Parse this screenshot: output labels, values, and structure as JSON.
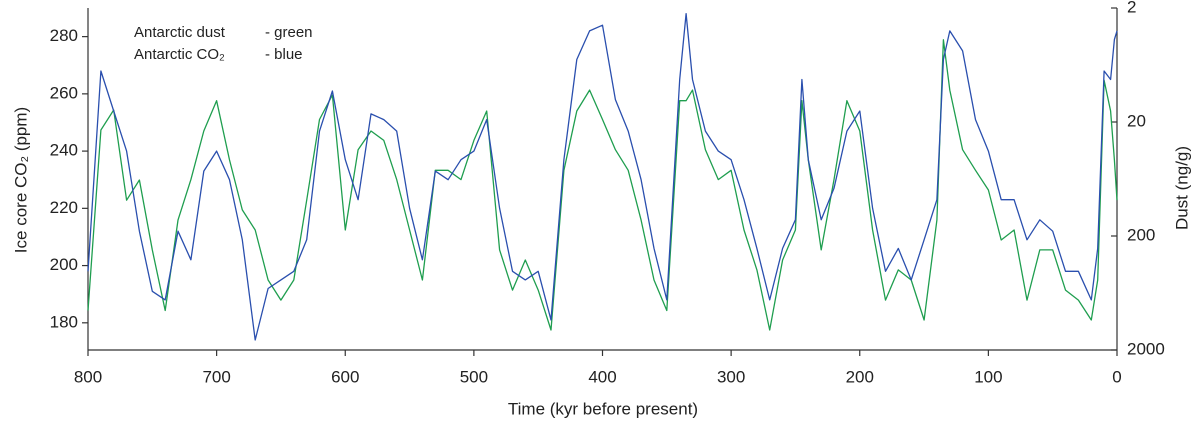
{
  "chart_data": {
    "type": "line",
    "x_label": "Time (kyr before present)",
    "y_label": "Ice core CO₂ (ppm)",
    "y2_label": "Dust (ng/g)",
    "xlim": [
      800,
      0
    ],
    "xticks": [
      800,
      700,
      600,
      500,
      400,
      300,
      200,
      100,
      0
    ],
    "ylim": [
      170.5,
      290
    ],
    "yticks": [
      180,
      200,
      220,
      240,
      260,
      280
    ],
    "y2lim": [
      2000,
      2
    ],
    "y2ticks": [
      2,
      20,
      200,
      2000
    ],
    "y2log": true,
    "x": [
      800,
      790,
      780,
      770,
      760,
      750,
      740,
      730,
      720,
      710,
      700,
      690,
      680,
      670,
      660,
      650,
      640,
      630,
      620,
      610,
      600,
      590,
      580,
      570,
      560,
      550,
      540,
      530,
      520,
      510,
      500,
      490,
      480,
      470,
      460,
      450,
      440,
      430,
      420,
      410,
      400,
      390,
      380,
      370,
      360,
      350,
      340,
      335,
      330,
      320,
      310,
      300,
      290,
      280,
      270,
      260,
      250,
      245,
      240,
      230,
      220,
      210,
      200,
      190,
      180,
      170,
      160,
      150,
      140,
      135,
      130,
      120,
      110,
      100,
      90,
      80,
      70,
      60,
      50,
      40,
      30,
      20,
      15,
      10,
      5,
      2,
      0
    ],
    "series": [
      {
        "name": "Antarctic dust",
        "legend_suffix": "- green",
        "color": "#1f9e4f",
        "axis": "y2",
        "values": [
          900,
          23.5,
          15.7,
          97,
          64.5,
          265,
          900,
          145,
          64,
          24,
          13,
          43,
          118,
          177,
          486,
          730,
          486,
          97,
          19,
          11.6,
          177,
          35,
          24,
          29,
          64,
          177,
          486,
          53,
          53,
          64,
          29,
          16,
          265,
          596,
          325,
          596,
          1336,
          53,
          16,
          10.5,
          19,
          35,
          53,
          145,
          486,
          900,
          13,
          13,
          10.5,
          35,
          64,
          53,
          177,
          397,
          1336,
          325,
          177,
          13,
          43,
          265,
          64,
          13,
          24,
          177,
          730,
          397,
          486,
          1091,
          145,
          3.8,
          10.5,
          35,
          53,
          79,
          217,
          177,
          730,
          265,
          265,
          596,
          730,
          1091,
          486,
          8.6,
          16,
          43,
          97
        ]
      },
      {
        "name": "Antarctic CO₂",
        "legend_suffix": "- blue",
        "color": "#2a4fae",
        "axis": "y",
        "values": [
          198,
          268,
          254,
          240,
          212,
          191,
          188,
          212,
          202,
          233,
          240,
          230,
          209,
          174,
          192,
          195,
          198,
          209,
          247,
          261,
          237,
          223,
          253,
          251,
          247,
          220,
          202,
          233,
          230,
          237,
          240,
          251,
          220,
          198,
          195,
          198,
          181,
          237,
          272,
          282,
          284,
          258,
          247,
          230,
          206,
          188,
          265,
          288,
          265,
          247,
          240,
          237,
          223,
          206,
          188,
          206,
          216,
          265,
          237,
          216,
          227,
          247,
          254,
          220,
          198,
          206,
          195,
          209,
          223,
          272,
          282,
          275,
          251,
          240,
          223,
          223,
          209,
          216,
          212,
          198,
          198,
          188,
          206,
          268,
          265,
          279,
          282
        ]
      }
    ]
  }
}
